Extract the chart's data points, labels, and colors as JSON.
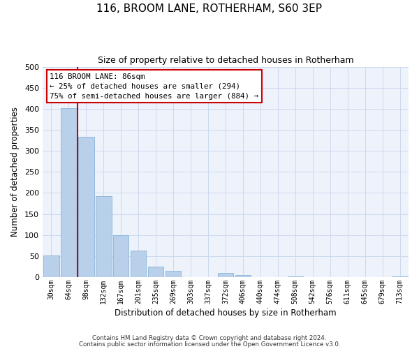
{
  "title": "116, BROOM LANE, ROTHERHAM, S60 3EP",
  "subtitle": "Size of property relative to detached houses in Rotherham",
  "xlabel": "Distribution of detached houses by size in Rotherham",
  "ylabel": "Number of detached properties",
  "bar_labels": [
    "30sqm",
    "64sqm",
    "98sqm",
    "132sqm",
    "167sqm",
    "201sqm",
    "235sqm",
    "269sqm",
    "303sqm",
    "337sqm",
    "372sqm",
    "406sqm",
    "440sqm",
    "474sqm",
    "508sqm",
    "542sqm",
    "576sqm",
    "611sqm",
    "645sqm",
    "679sqm",
    "713sqm"
  ],
  "bar_values": [
    52,
    401,
    333,
    193,
    99,
    63,
    25,
    15,
    0,
    0,
    10,
    5,
    0,
    0,
    2,
    0,
    0,
    0,
    0,
    0,
    2
  ],
  "bar_color": "#b8d0ea",
  "bar_edgecolor": "#8ab4d8",
  "property_line_color": "#cc0000",
  "property_line_xidx": 1.5,
  "annotation_title": "116 BROOM LANE: 86sqm",
  "annotation_line1": "← 25% of detached houses are smaller (294)",
  "annotation_line2": "75% of semi-detached houses are larger (884) →",
  "annotation_box_edgecolor": "#cc0000",
  "ylim": [
    0,
    500
  ],
  "yticks": [
    0,
    50,
    100,
    150,
    200,
    250,
    300,
    350,
    400,
    450,
    500
  ],
  "footnote1": "Contains HM Land Registry data © Crown copyright and database right 2024.",
  "footnote2": "Contains public sector information licensed under the Open Government Licence v3.0.",
  "bg_color": "#eef3fb",
  "grid_color": "#ccd9ee"
}
